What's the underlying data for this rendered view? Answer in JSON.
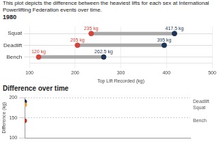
{
  "chart_data": [
    {
      "type": "dumbbell",
      "subtitle": "This plot depicts the difference between the heaviest lifts for each sex at International Powerlifting Federation events over time.",
      "title": "1980",
      "x_label": "Top Lift Recorded (kg)",
      "orientation": "horizontal",
      "categories": [
        "Squat",
        "Deadlift",
        "Bench"
      ],
      "series": [
        {
          "color": "#d1453b",
          "values": [
            235,
            205,
            120
          ],
          "value_labels": [
            "235 kg",
            "205 kg",
            "120 kg"
          ]
        },
        {
          "color": "#1d3557",
          "values": [
            417.5,
            395,
            262.5
          ],
          "value_labels": [
            "417.5 kg",
            "395 kg",
            "262.5 kg"
          ]
        }
      ],
      "xlim": [
        100,
        500
      ],
      "xticks": [
        100,
        200,
        300,
        400,
        500
      ],
      "grid": true,
      "data_labels": true
    },
    {
      "type": "line",
      "title": "Difference over time",
      "y_label": "Difference (kg)",
      "x": [
        1980
      ],
      "series": [
        {
          "name": "Squat",
          "color": "#e8a33d",
          "values": [
            182.5
          ],
          "line_style": "dotted"
        },
        {
          "name": "Deadlift",
          "color": "#1d3557",
          "values": [
            190
          ],
          "line_style": "dotted"
        },
        {
          "name": "Bench",
          "color": "#c0392b",
          "values": [
            142.5
          ],
          "line_style": "dotted"
        }
      ],
      "xlim": [
        1980,
        2020
      ],
      "ylim": [
        100,
        200
      ],
      "yticks": [
        100,
        150,
        200
      ],
      "grid": true,
      "tick_labels": "y"
    }
  ]
}
